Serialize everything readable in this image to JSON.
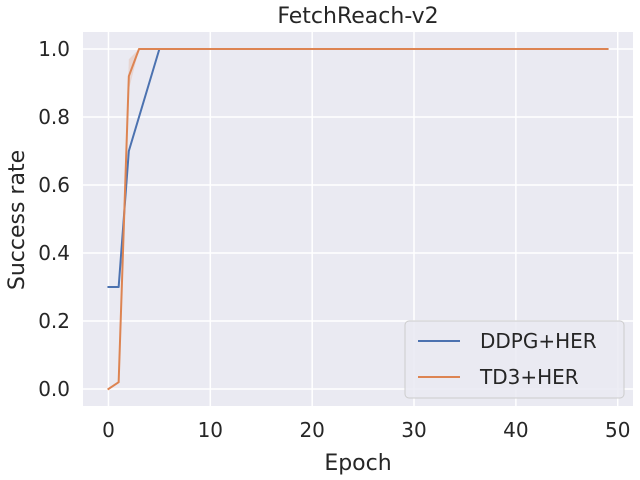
{
  "chart_data": {
    "type": "line",
    "title": "FetchReach-v2",
    "xlabel": "Epoch",
    "ylabel": "Success rate",
    "xlim": [
      -2.5,
      51.5
    ],
    "ylim": [
      -0.05,
      1.05
    ],
    "xticks": [
      0,
      10,
      20,
      30,
      40,
      50
    ],
    "yticks": [
      0.0,
      0.2,
      0.4,
      0.6,
      0.8,
      1.0
    ],
    "xtick_labels": [
      "0",
      "10",
      "20",
      "30",
      "40",
      "50"
    ],
    "ytick_labels": [
      "0.0",
      "0.2",
      "0.4",
      "0.6",
      "0.8",
      "1.0"
    ],
    "grid": true,
    "legend_position": "lower-right",
    "series": [
      {
        "name": "DDPG+HER",
        "color": "#4c72b0",
        "x": [
          0,
          1,
          2,
          5,
          49
        ],
        "y": [
          0.3,
          0.3,
          0.7,
          1.0,
          1.0
        ]
      },
      {
        "name": "TD3+HER",
        "color": "#dd8452",
        "x": [
          0,
          1,
          2,
          3,
          49
        ],
        "y": [
          0.0,
          0.02,
          0.92,
          1.0,
          1.0
        ],
        "band_x": [
          0,
          1,
          2,
          3,
          49
        ],
        "band_low": [
          0.0,
          0.02,
          0.88,
          1.0,
          1.0
        ],
        "band_high": [
          0.0,
          0.02,
          0.97,
          1.0,
          1.0
        ]
      }
    ]
  }
}
